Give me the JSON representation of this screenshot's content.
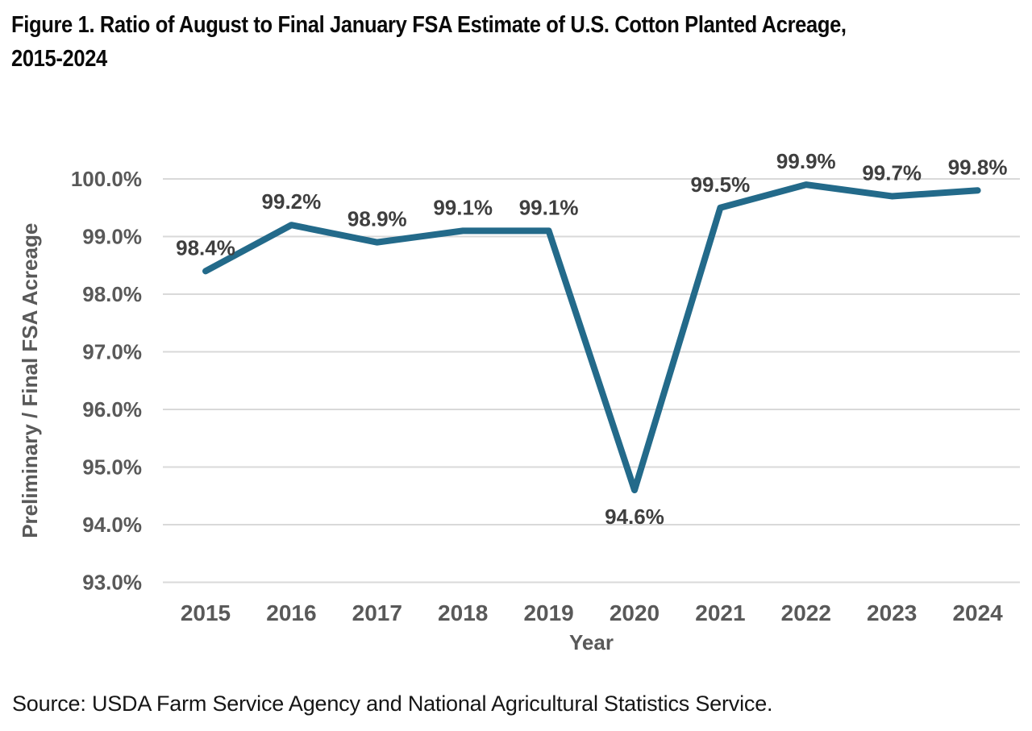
{
  "figure": {
    "title_line1": "Figure 1. Ratio of August to Final January FSA Estimate of U.S. Cotton Planted Acreage,",
    "title_line2": "2015-2024",
    "source": "Source: USDA Farm Service Agency and National Agricultural Statistics Service."
  },
  "chart_data": {
    "type": "line",
    "title": "Figure 1. Ratio of August to Final January FSA Estimate of U.S. Cotton Planted Acreage, 2015-2024",
    "categories": [
      "2015",
      "2016",
      "2017",
      "2018",
      "2019",
      "2020",
      "2021",
      "2022",
      "2023",
      "2024"
    ],
    "values": [
      98.4,
      99.2,
      98.9,
      99.1,
      99.1,
      94.6,
      99.5,
      99.9,
      99.7,
      99.8
    ],
    "point_labels": [
      "98.4%",
      "99.2%",
      "98.9%",
      "99.1%",
      "99.1%",
      "94.6%",
      "99.5%",
      "99.9%",
      "99.7%",
      "99.8%"
    ],
    "xlabel": "Year",
    "ylabel": "Preliminary / Final FSA Acreage",
    "ylim": [
      93.0,
      100.0
    ],
    "ytick_step": 1.0,
    "ytick_labels": [
      "93.0%",
      "94.0%",
      "95.0%",
      "96.0%",
      "97.0%",
      "98.0%",
      "99.0%",
      "100.0%"
    ],
    "grid": true,
    "legend": "none",
    "colors": {
      "line": "#236a8a",
      "grid": "#d9d9d9",
      "axis_text": "#595959",
      "data_label": "#3f3f3f",
      "title_text": "#0a0a0a"
    }
  }
}
